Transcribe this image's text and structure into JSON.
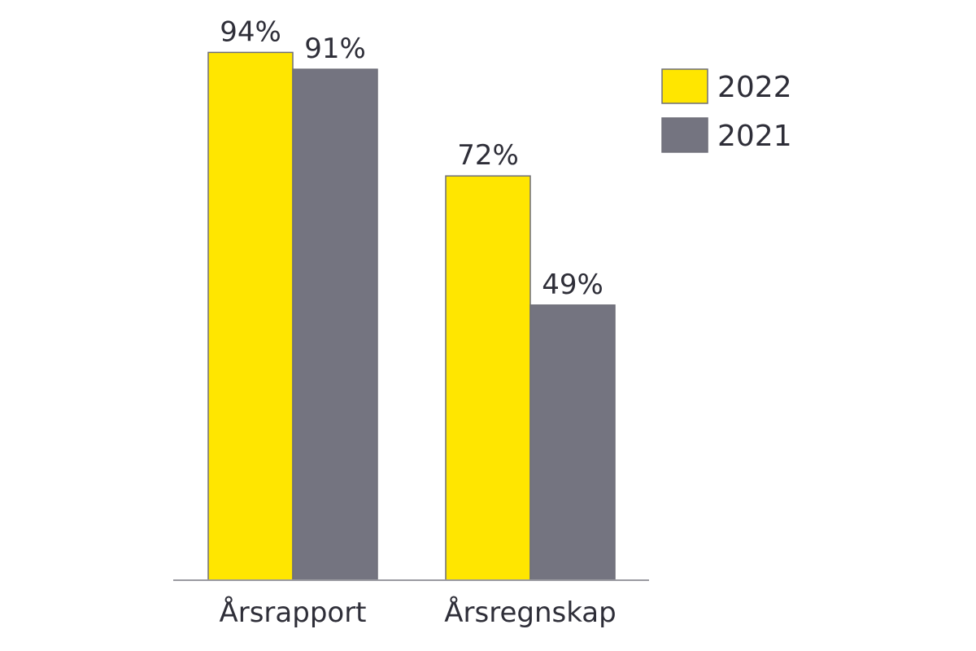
{
  "chart_data": {
    "type": "bar",
    "title": "",
    "xlabel": "",
    "ylabel": "",
    "ylim": [
      0,
      100
    ],
    "grid": false,
    "legend_position": "top-right",
    "categories": [
      "Årsrapport",
      "Årsregnskap"
    ],
    "series": [
      {
        "name": "2022",
        "color": "#ffe600",
        "values": [
          94,
          72
        ],
        "labels": [
          "94%",
          "72%"
        ]
      },
      {
        "name": "2021",
        "color": "#747480",
        "values": [
          91,
          49
        ],
        "labels": [
          "91%",
          "49%"
        ]
      }
    ]
  }
}
